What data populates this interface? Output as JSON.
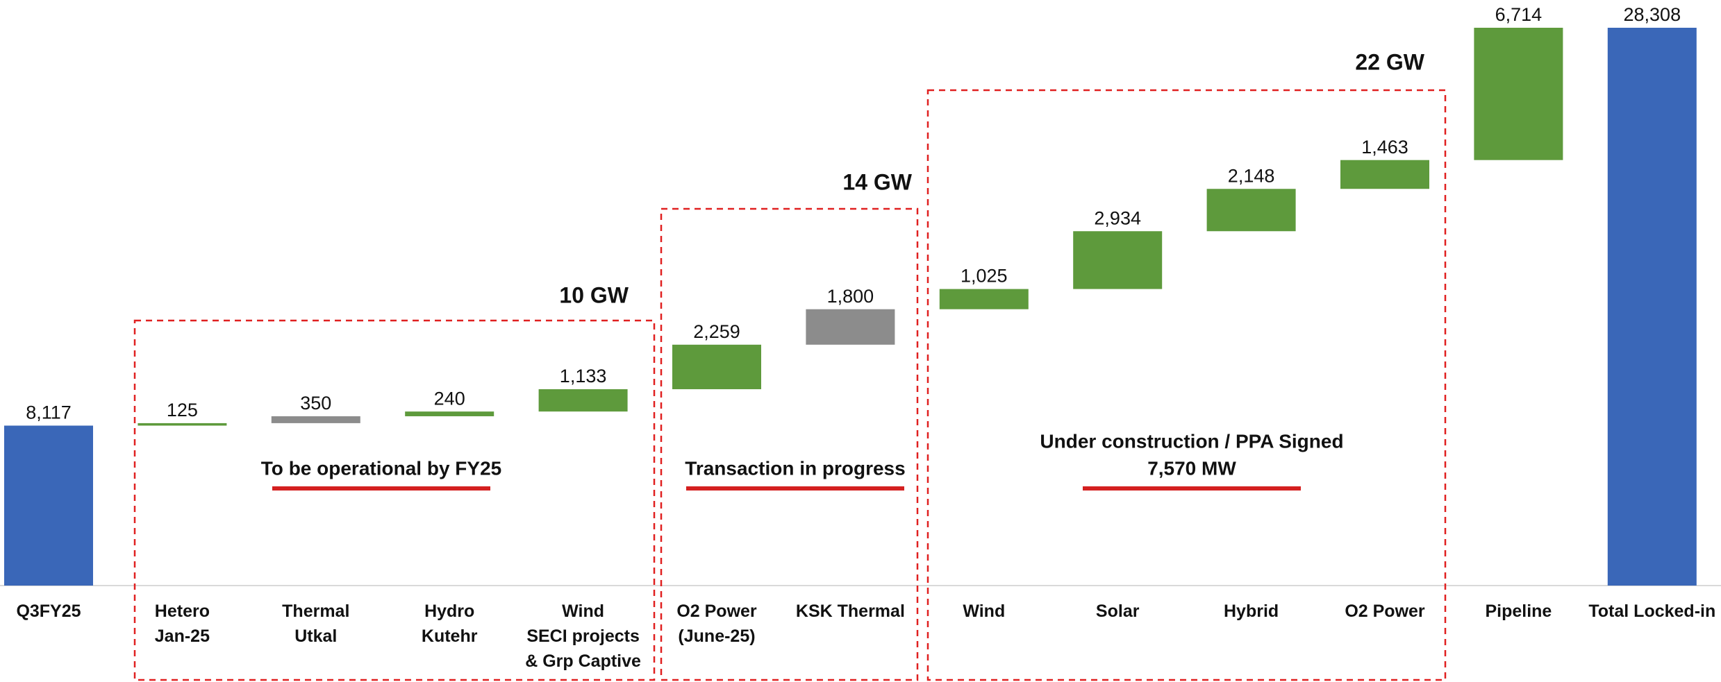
{
  "chart_data": {
    "type": "waterfall",
    "categories": [
      [
        "Q3FY25"
      ],
      [
        "Hetero",
        "Jan-25"
      ],
      [
        "Thermal",
        "Utkal"
      ],
      [
        "Hydro",
        "Kutehr"
      ],
      [
        "Wind",
        "SECI projects",
        "& Grp Captive"
      ],
      [
        "O2 Power",
        "(June-25)"
      ],
      [
        "KSK Thermal"
      ],
      [
        "Wind"
      ],
      [
        "Solar"
      ],
      [
        "Hybrid"
      ],
      [
        "O2 Power"
      ],
      [
        "Pipeline"
      ],
      [
        "Total Locked-in"
      ]
    ],
    "values": [
      8117,
      125,
      350,
      240,
      1133,
      2259,
      1800,
      1025,
      2934,
      2148,
      1463,
      6714,
      28308
    ],
    "value_labels": [
      "8,117",
      "125",
      "350",
      "240",
      "1,133",
      "2,259",
      "1,800",
      "1,025",
      "2,934",
      "2,148",
      "1,463",
      "6,714",
      "28,308"
    ],
    "measure": [
      "absolute",
      "relative",
      "relative",
      "relative",
      "relative",
      "relative",
      "relative",
      "relative",
      "relative",
      "relative",
      "relative",
      "relative",
      "total"
    ],
    "colors": [
      "#3a67b8",
      "#5e9a3c",
      "#8c8c8c",
      "#5e9a3c",
      "#5e9a3c",
      "#5e9a3c",
      "#8c8c8c",
      "#5e9a3c",
      "#5e9a3c",
      "#5e9a3c",
      "#5e9a3c",
      "#5e9a3c",
      "#3a67b8"
    ],
    "groups": [
      {
        "label": "10 GW",
        "caption": [
          "To be operational by FY25"
        ]
      },
      {
        "label": "14 GW",
        "caption": [
          "Transaction in progress"
        ]
      },
      {
        "label": "22 GW",
        "caption": [
          "Under construction / PPA Signed",
          "7,570 MW"
        ]
      }
    ]
  }
}
